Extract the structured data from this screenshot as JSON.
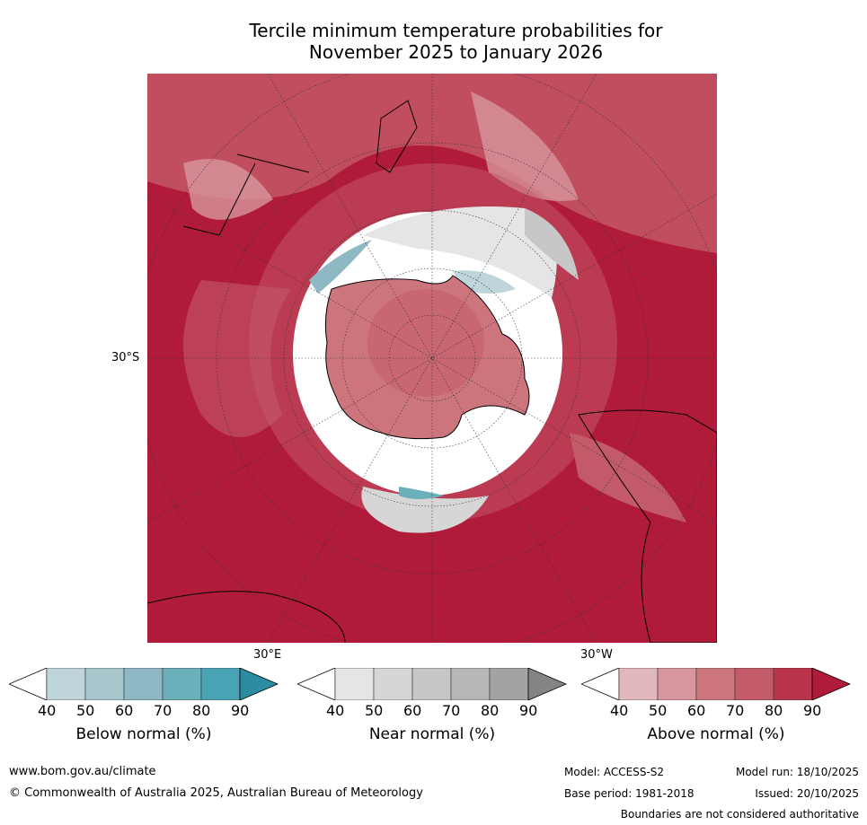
{
  "title": {
    "line1": "Tercile minimum temperature probabilities for",
    "line2": "November 2025 to January 2026"
  },
  "map_labels": {
    "lat": "30°S",
    "lon_east": "30°E",
    "lon_west": "30°W"
  },
  "colorbars": [
    {
      "label": "Below normal (%)",
      "ticks": [
        "40",
        "50",
        "60",
        "70",
        "80",
        "90"
      ],
      "colors": [
        "#ffffff",
        "#bfd5db",
        "#a7c7cc",
        "#8fb8c5",
        "#6aafb9",
        "#48a3b4",
        "#2b8ca2"
      ]
    },
    {
      "label": "Near normal (%)",
      "ticks": [
        "40",
        "50",
        "60",
        "70",
        "80",
        "90"
      ],
      "colors": [
        "#ffffff",
        "#e5e5e5",
        "#d6d6d6",
        "#c7c7c7",
        "#b7b7b7",
        "#a3a3a3",
        "#848484"
      ]
    },
    {
      "label": "Above normal (%)",
      "ticks": [
        "40",
        "50",
        "60",
        "70",
        "80",
        "90"
      ],
      "colors": [
        "#ffffff",
        "#e0b8bd",
        "#d7969e",
        "#cc757d",
        "#c45b69",
        "#b9334a",
        "#b01b3a"
      ]
    }
  ],
  "footer": {
    "url": "www.bom.gov.au/climate",
    "copyright": "© Commonwealth of Australia 2025, Australian Bureau of Meteorology",
    "model": "Model: ACCESS-S2",
    "model_run": "Model run: 18/10/2025",
    "base_period": "Base period: 1981-2018",
    "issued": "Issued: 20/10/2025",
    "disclaimer": "Boundaries are not considered authoritative"
  }
}
